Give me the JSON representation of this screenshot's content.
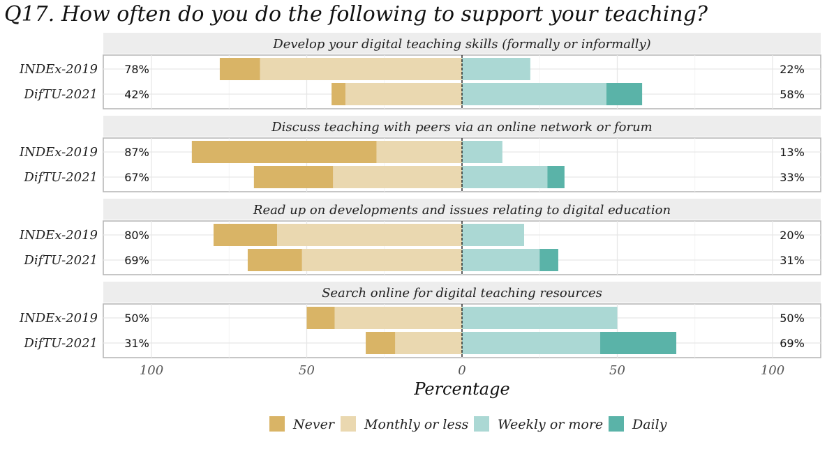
{
  "chart_data": {
    "type": "bar",
    "orientation": "horizontal-diverging",
    "title": "Q17. How often do you do the following to support your teaching?",
    "xlabel": "Percentage",
    "x_ticks": [
      "100",
      "50",
      "0",
      "50",
      "100"
    ],
    "xlim": [
      -100,
      100
    ],
    "legend_position": "bottom",
    "categories": [
      "INDEx-2019",
      "DifTU-2021"
    ],
    "legend": [
      {
        "name": "Never",
        "color": "#d9b466"
      },
      {
        "name": "Monthly or less",
        "color": "#ead8b0"
      },
      {
        "name": "Weekly or more",
        "color": "#abd8d4"
      },
      {
        "name": "Daily",
        "color": "#5ab3a8"
      }
    ],
    "panels": [
      {
        "strip": "Develop your digital teaching skills (formally or informally)",
        "rows": [
          {
            "label": "INDEx-2019",
            "never": 13,
            "monthly": 65,
            "weekly": 22,
            "daily": 0,
            "left_pct": "78%",
            "right_pct": "22%"
          },
          {
            "label": "DifTU-2021",
            "never": 4.5,
            "monthly": 37.5,
            "weekly": 46.5,
            "daily": 11.5,
            "left_pct": "42%",
            "right_pct": "58%"
          }
        ]
      },
      {
        "strip": "Discuss teaching with peers via an online network or forum",
        "rows": [
          {
            "label": "INDEx-2019",
            "never": 59.5,
            "monthly": 27.5,
            "weekly": 13,
            "daily": 0,
            "left_pct": "87%",
            "right_pct": "13%"
          },
          {
            "label": "DifTU-2021",
            "never": 25.5,
            "monthly": 41.5,
            "weekly": 27.5,
            "daily": 5.5,
            "left_pct": "67%",
            "right_pct": "33%"
          }
        ]
      },
      {
        "strip": "Read up on developments and issues relating to digital education",
        "rows": [
          {
            "label": "INDEx-2019",
            "never": 20.5,
            "monthly": 59.5,
            "weekly": 20,
            "daily": 0,
            "left_pct": "80%",
            "right_pct": "20%"
          },
          {
            "label": "DifTU-2021",
            "never": 17.5,
            "monthly": 51.5,
            "weekly": 25,
            "daily": 6,
            "left_pct": "69%",
            "right_pct": "31%"
          }
        ]
      },
      {
        "strip": "Search online for digital teaching resources",
        "rows": [
          {
            "label": "INDEx-2019",
            "never": 9,
            "monthly": 41,
            "weekly": 50,
            "daily": 0,
            "left_pct": "50%",
            "right_pct": "50%"
          },
          {
            "label": "DifTU-2021",
            "never": 9.5,
            "monthly": 21.5,
            "weekly": 44.5,
            "daily": 24.5,
            "left_pct": "31%",
            "right_pct": "69%"
          }
        ]
      }
    ]
  }
}
